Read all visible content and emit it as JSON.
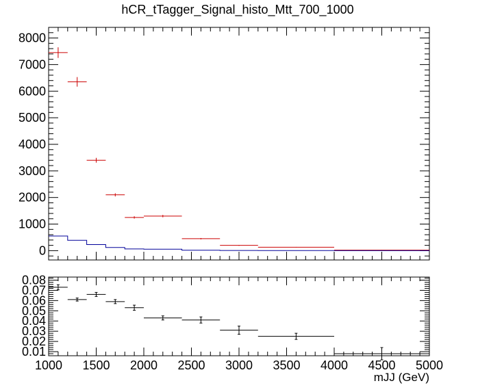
{
  "chart_data": [
    {
      "type": "histogram",
      "title": "hCR_tTagger_Signal_histo_Mtt_700_1000",
      "xlim": [
        1000,
        5000
      ],
      "ylim": [
        -350,
        8400
      ],
      "yticks": [
        0,
        1000,
        2000,
        3000,
        4000,
        5000,
        6000,
        7000,
        8000
      ],
      "bin_edges": [
        1000,
        1200,
        1400,
        1600,
        1800,
        2000,
        2400,
        2800,
        3200,
        4000,
        5000
      ],
      "series": [
        {
          "style": "crosses",
          "color": "#cc0000",
          "values": [
            7450,
            6350,
            3400,
            2100,
            1250,
            1300,
            450,
            200,
            130,
            20
          ],
          "errors": [
            200,
            180,
            90,
            60,
            45,
            45,
            25,
            15,
            10,
            5
          ]
        },
        {
          "style": "step",
          "color": "#000099",
          "values": [
            550,
            390,
            230,
            120,
            65,
            55,
            18,
            7,
            3,
            1
          ]
        }
      ]
    },
    {
      "type": "histogram",
      "xlabel": "mJJ (GeV)",
      "xlim": [
        1000,
        5000
      ],
      "ylim": [
        0.006,
        0.083
      ],
      "yticks": [
        0.01,
        0.02,
        0.03,
        0.04,
        0.05,
        0.06,
        0.07,
        0.08
      ],
      "ytick_labels": [
        "0.01",
        "0.02",
        "0.03",
        "0.04",
        "0.05",
        "0.06",
        "0.07",
        "0.08"
      ],
      "xticks": [
        1000,
        1500,
        2000,
        2500,
        3000,
        3500,
        4000,
        4500,
        5000
      ],
      "bin_edges": [
        1000,
        1200,
        1400,
        1600,
        1800,
        2000,
        2400,
        2800,
        3200,
        4000,
        5000
      ],
      "series": [
        {
          "style": "crosses",
          "color": "#000000",
          "values": [
            0.073,
            0.061,
            0.066,
            0.059,
            0.053,
            0.043,
            0.041,
            0.031,
            0.025,
            0.008
          ],
          "errors": [
            0.0025,
            0.0015,
            0.002,
            0.002,
            0.0025,
            0.002,
            0.003,
            0.004,
            0.003,
            0.006
          ]
        }
      ]
    }
  ]
}
